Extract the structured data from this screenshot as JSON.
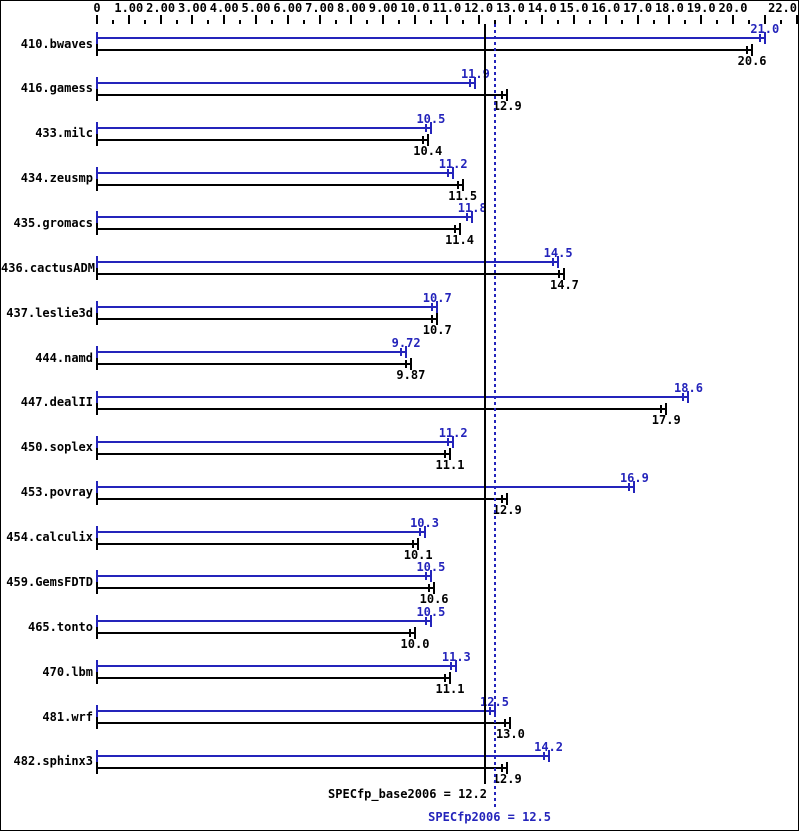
{
  "colors": {
    "peak": "#2424bb",
    "base": "#000000",
    "background": "#ffffff",
    "border": "#000000"
  },
  "chart_data": {
    "type": "bar",
    "orientation": "horizontal",
    "title": "",
    "xlabel": "",
    "ylabel": "",
    "grid": false,
    "legend_position": "none",
    "axis": {
      "min": 0,
      "max": 22,
      "major_tick": 1.0,
      "minor_tick": 0.5,
      "labels": [
        {
          "v": 0,
          "t": "0"
        },
        {
          "v": 1,
          "t": "1.00"
        },
        {
          "v": 2,
          "t": "2.00"
        },
        {
          "v": 3,
          "t": "3.00"
        },
        {
          "v": 4,
          "t": "4.00"
        },
        {
          "v": 5,
          "t": "5.00"
        },
        {
          "v": 6,
          "t": "6.00"
        },
        {
          "v": 7,
          "t": "7.00"
        },
        {
          "v": 8,
          "t": "8.00"
        },
        {
          "v": 9,
          "t": "9.00"
        },
        {
          "v": 10,
          "t": "10.0"
        },
        {
          "v": 11,
          "t": "11.0"
        },
        {
          "v": 12,
          "t": "12.0"
        },
        {
          "v": 13,
          "t": "13.0"
        },
        {
          "v": 14,
          "t": "14.0"
        },
        {
          "v": 15,
          "t": "15.0"
        },
        {
          "v": 16,
          "t": "16.0"
        },
        {
          "v": 17,
          "t": "17.0"
        },
        {
          "v": 18,
          "t": "18.0"
        },
        {
          "v": 19,
          "t": "19.0"
        },
        {
          "v": 20,
          "t": "20.0"
        },
        {
          "v": 22,
          "t": "22.0"
        }
      ]
    },
    "categories": [
      "410.bwaves",
      "416.gamess",
      "433.milc",
      "434.zeusmp",
      "435.gromacs",
      "436.cactusADM",
      "437.leslie3d",
      "444.namd",
      "447.dealII",
      "450.soplex",
      "453.povray",
      "454.calculix",
      "459.GemsFDTD",
      "465.tonto",
      "470.lbm",
      "481.wrf",
      "482.sphinx3"
    ],
    "series": [
      {
        "name": "peak",
        "legend": "SPECfp2006",
        "color": "#2424bb",
        "values": [
          21.0,
          11.9,
          10.5,
          11.2,
          11.8,
          14.5,
          10.7,
          9.72,
          18.6,
          11.2,
          16.9,
          10.3,
          10.5,
          10.5,
          11.3,
          12.5,
          14.2
        ],
        "labels": [
          "21.0",
          "11.9",
          "10.5",
          "11.2",
          "11.8",
          "14.5",
          "10.7",
          "9.72",
          "18.6",
          "11.2",
          "16.9",
          "10.3",
          "10.5",
          "10.5",
          "11.3",
          "12.5",
          "14.2"
        ]
      },
      {
        "name": "base",
        "legend": "SPECfp_base2006",
        "color": "#000000",
        "values": [
          20.6,
          12.9,
          10.4,
          11.5,
          11.4,
          14.7,
          10.7,
          9.87,
          17.9,
          11.1,
          12.9,
          10.1,
          10.6,
          10.0,
          11.1,
          13.0,
          12.9
        ],
        "labels": [
          "20.6",
          "12.9",
          "10.4",
          "11.5",
          "11.4",
          "14.7",
          "10.7",
          "9.87",
          "17.9",
          "11.1",
          "12.9",
          "10.1",
          "10.6",
          "10.0",
          "11.1",
          "13.0",
          "12.9"
        ]
      }
    ],
    "means": [
      {
        "label": "SPECfp_base2006 = 12.2",
        "value": 12.2,
        "line_style": "solid",
        "color": "#000000"
      },
      {
        "label": "SPECfp2006 = 12.5",
        "value": 12.5,
        "line_style": "dotted",
        "color": "#2424bb"
      }
    ]
  }
}
